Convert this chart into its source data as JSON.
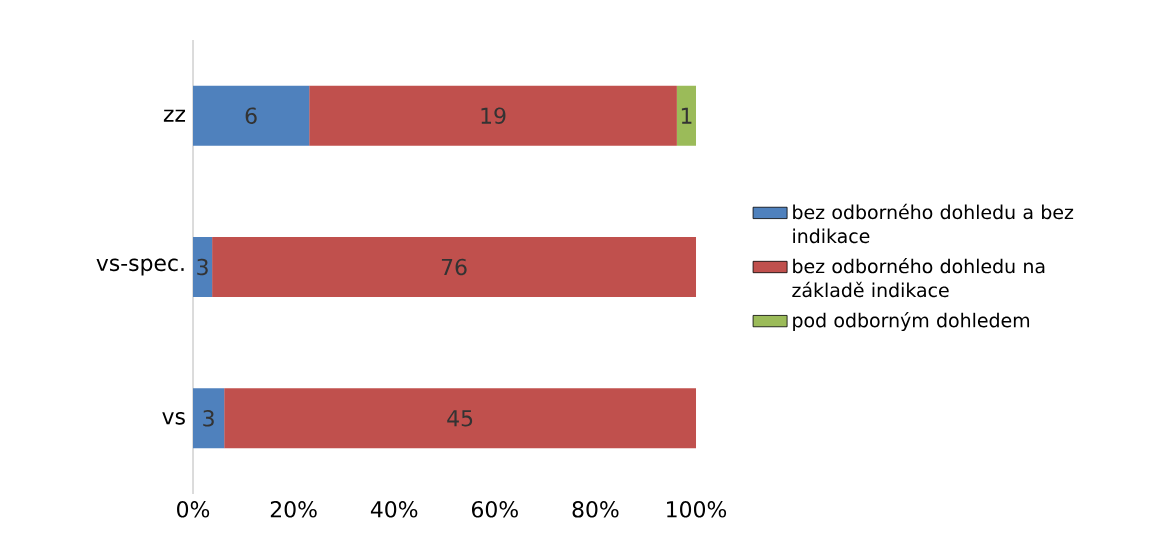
{
  "chart_data": {
    "type": "bar",
    "orientation": "horizontal",
    "stacked": true,
    "categories": [
      "zz",
      "vs-spec.",
      "vs"
    ],
    "series": [
      {
        "name": "bez odborného dohledu a bez indikace",
        "color": "#4f81bd",
        "values": [
          23.1,
          3.8,
          6.2
        ]
      },
      {
        "name": "bez odborného dohledu na základě indikace",
        "color": "#c0504d",
        "values": [
          73.1,
          96.2,
          93.8
        ]
      },
      {
        "name": "pod odborným dohledem",
        "color": "#9bbb59",
        "values": [
          3.8,
          0,
          0
        ]
      }
    ],
    "annotations": [
      "6",
      "19",
      "1",
      "3",
      "76",
      "3",
      "45"
    ],
    "xlim": [
      0,
      100
    ],
    "xticks": [
      {
        "value": 0,
        "label": "0%"
      },
      {
        "value": 20,
        "label": "20%"
      },
      {
        "value": 40,
        "label": "40%"
      },
      {
        "value": 60,
        "label": "60%"
      },
      {
        "value": 80,
        "label": "80%"
      },
      {
        "value": 100,
        "label": "100%"
      }
    ],
    "legend": "right"
  }
}
